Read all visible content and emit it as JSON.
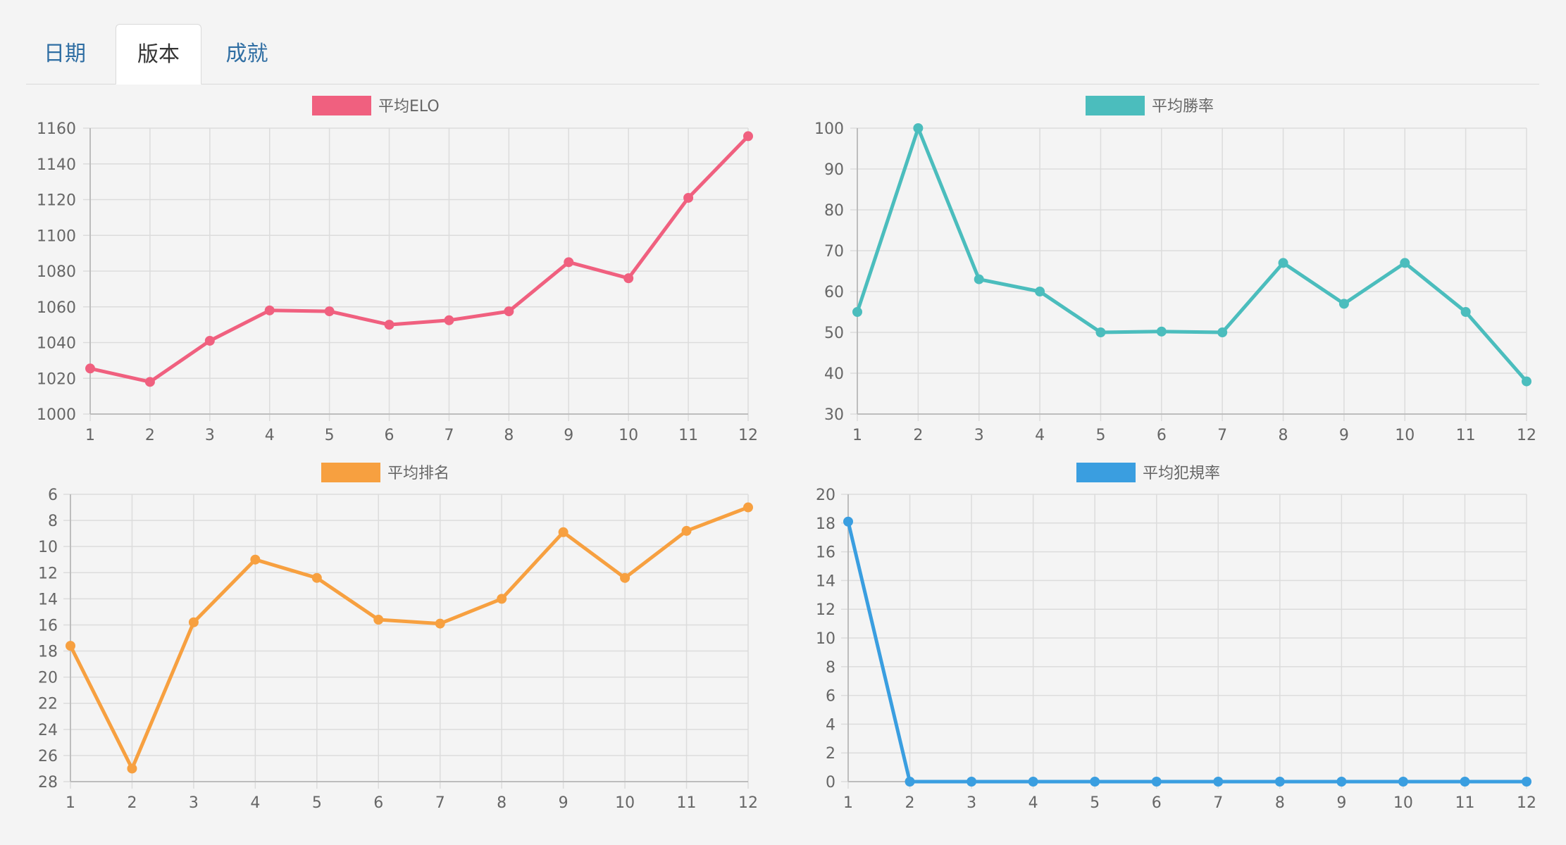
{
  "tabs": [
    {
      "label": "日期",
      "active": false
    },
    {
      "label": "版本",
      "active": true
    },
    {
      "label": "成就",
      "active": false
    }
  ],
  "chart_data": [
    {
      "type": "line",
      "legend": "平均ELO",
      "color": "#f0607f",
      "x": [
        "1",
        "2",
        "3",
        "4",
        "5",
        "6",
        "7",
        "8",
        "9",
        "10",
        "11",
        "12"
      ],
      "values": [
        1025.5,
        1018,
        1041,
        1058,
        1057.5,
        1050,
        1052.5,
        1057.5,
        1085,
        1076,
        1121,
        1155.5
      ],
      "ylim": [
        1000,
        1160
      ],
      "yticks": [
        1000,
        1020,
        1040,
        1060,
        1080,
        1100,
        1120,
        1140,
        1160
      ],
      "reverse_y": false,
      "grid": true,
      "legend_position": "top-center"
    },
    {
      "type": "line",
      "legend": "平均勝率",
      "color": "#4bbdbd",
      "x": [
        "1",
        "2",
        "3",
        "4",
        "5",
        "6",
        "7",
        "8",
        "9",
        "10",
        "11",
        "12"
      ],
      "values": [
        55,
        100,
        63,
        60,
        50,
        50.2,
        50,
        67,
        57,
        67,
        55,
        38
      ],
      "ylim": [
        30,
        100
      ],
      "yticks": [
        30,
        40,
        50,
        60,
        70,
        80,
        90,
        100
      ],
      "reverse_y": false,
      "grid": true,
      "legend_position": "top-center"
    },
    {
      "type": "line",
      "legend": "平均排名",
      "color": "#f7a040",
      "x": [
        "1",
        "2",
        "3",
        "4",
        "5",
        "6",
        "7",
        "8",
        "9",
        "10",
        "11",
        "12"
      ],
      "values": [
        17.6,
        27,
        15.8,
        11,
        12.4,
        15.6,
        15.9,
        14,
        8.9,
        12.4,
        8.8,
        7
      ],
      "ylim": [
        6,
        28
      ],
      "yticks": [
        6,
        8,
        10,
        12,
        14,
        16,
        18,
        20,
        22,
        24,
        26,
        28
      ],
      "reverse_y": true,
      "grid": true,
      "legend_position": "top-center"
    },
    {
      "type": "line",
      "legend": "平均犯規率",
      "color": "#3a9ee0",
      "x": [
        "1",
        "2",
        "3",
        "4",
        "5",
        "6",
        "7",
        "8",
        "9",
        "10",
        "11",
        "12"
      ],
      "values": [
        18.1,
        0,
        0,
        0,
        0,
        0,
        0,
        0,
        0,
        0,
        0,
        0
      ],
      "ylim": [
        0,
        20
      ],
      "yticks": [
        0,
        2,
        4,
        6,
        8,
        10,
        12,
        14,
        16,
        18,
        20
      ],
      "reverse_y": false,
      "grid": true,
      "legend_position": "top-center"
    }
  ]
}
